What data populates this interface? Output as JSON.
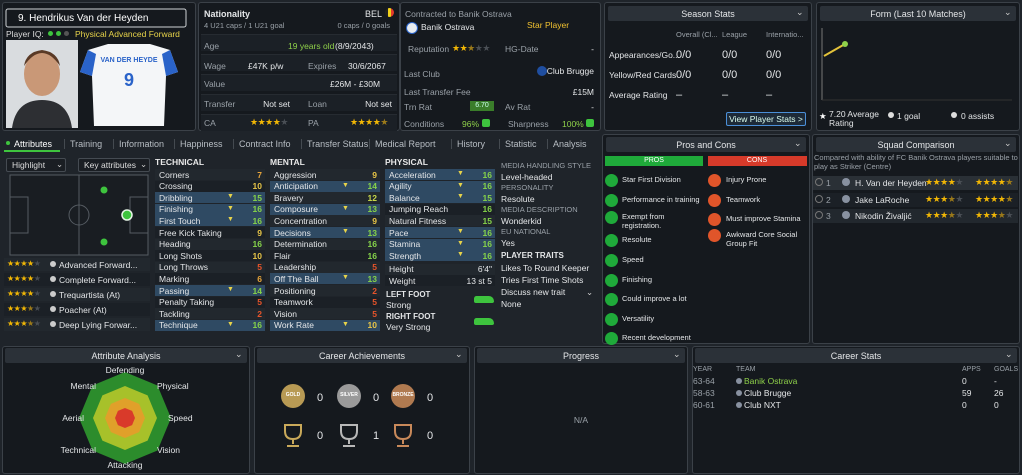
{
  "profile": {
    "name": "9. Hendrikus Van der Heyden",
    "iq_label": "Player IQ:",
    "role": "Physical Advanced Forward",
    "shirt_name": "VAN DER HEYDE",
    "shirt_number": "9"
  },
  "details": {
    "nationality": {
      "label": "Nationality",
      "value": "BEL",
      "u21": "4 U21 caps / 1 U21 goal",
      "senior": "0 caps / 0 goals"
    },
    "age": {
      "label": "Age",
      "value": "19 years old",
      "dob": "(8/9/2043)"
    },
    "wage": {
      "label": "Wage",
      "value": "£47K p/w"
    },
    "expires": {
      "label": "Expires",
      "value": "30/6/2067"
    },
    "value": {
      "label": "Value",
      "value": "£26M - £30M"
    },
    "transfer": {
      "label": "Transfer",
      "value": "Not set"
    },
    "loan": {
      "label": "Loan",
      "value": "Not set"
    },
    "ca": {
      "label": "CA",
      "stars": 4
    },
    "pa": {
      "label": "PA",
      "stars": 4.5
    }
  },
  "contract": {
    "heading": "Contracted to Banik Ostrava",
    "status": "Star Player",
    "club": "Banik Ostrava",
    "reputation": {
      "label": "Reputation",
      "stars": 2.5
    },
    "hg": {
      "label": "HG-Date",
      "value": "-"
    },
    "last_club": {
      "label": "Last Club",
      "value": "Club Brugge"
    },
    "fee": {
      "label": "Last Transfer Fee",
      "value": "£15M"
    },
    "trn": {
      "label": "Trn Rat",
      "value": "6.70"
    },
    "av": {
      "label": "Av Rat",
      "value": "-"
    },
    "conditions": {
      "label": "Conditions",
      "value": "96%"
    },
    "sharpness": {
      "label": "Sharpness",
      "value": "100%"
    }
  },
  "season_stats": {
    "title": "Season Stats",
    "columns": [
      "Overall (Cl...",
      "League",
      "Internatio..."
    ],
    "rows": [
      {
        "label": "Appearances/Go...",
        "values": [
          "0/0",
          "0/0",
          "0/0"
        ]
      },
      {
        "label": "Yellow/Red Cards",
        "values": [
          "0/0",
          "0/0",
          "0/0"
        ]
      },
      {
        "label": "Average Rating",
        "values": [
          "–",
          "–",
          "–"
        ]
      }
    ],
    "button": "View Player Stats >"
  },
  "form": {
    "title": "Form (Last 10 Matches)",
    "average": "7.20 Average Rating",
    "goals": "1 goal",
    "assists": "0 assists"
  },
  "tabs": [
    "Attributes",
    "Training",
    "Information",
    "Happiness",
    "Contract Info",
    "Transfer Status",
    "Medical Report",
    "History",
    "Statistic",
    "Analysis"
  ],
  "pitch": {
    "highlight": "Highlight",
    "key": "Key attributes",
    "roles": [
      {
        "name": "Advanced Forward...",
        "stars": 4
      },
      {
        "name": "Complete Forward...",
        "stars": 4
      },
      {
        "name": "Trequartista (At)",
        "stars": 4
      },
      {
        "name": "Poacher (At)",
        "stars": 3.5
      },
      {
        "name": "Deep Lying Forwar...",
        "stars": 3.5
      }
    ]
  },
  "attributes": {
    "technical": {
      "title": "TECHNICAL",
      "items": [
        {
          "name": "Corners",
          "value": 7
        },
        {
          "name": "Crossing",
          "value": 10
        },
        {
          "name": "Dribbling",
          "value": 15,
          "key": true
        },
        {
          "name": "Finishing",
          "value": 16,
          "key": true
        },
        {
          "name": "First Touch",
          "value": 16,
          "key": true
        },
        {
          "name": "Free Kick Taking",
          "value": 9
        },
        {
          "name": "Heading",
          "value": 16
        },
        {
          "name": "Long Shots",
          "value": 10
        },
        {
          "name": "Long Throws",
          "value": 5
        },
        {
          "name": "Marking",
          "value": 6
        },
        {
          "name": "Passing",
          "value": 14,
          "key": true
        },
        {
          "name": "Penalty Taking",
          "value": 5
        },
        {
          "name": "Tackling",
          "value": 2
        },
        {
          "name": "Technique",
          "value": 16,
          "key": true
        }
      ]
    },
    "mental": {
      "title": "MENTAL",
      "items": [
        {
          "name": "Aggression",
          "value": 9
        },
        {
          "name": "Anticipation",
          "value": 14,
          "key": true
        },
        {
          "name": "Bravery",
          "value": 12
        },
        {
          "name": "Composure",
          "value": 13,
          "key": true
        },
        {
          "name": "Concentration",
          "value": 9
        },
        {
          "name": "Decisions",
          "value": 13,
          "key": true
        },
        {
          "name": "Determination",
          "value": 16
        },
        {
          "name": "Flair",
          "value": 16
        },
        {
          "name": "Leadership",
          "value": 5
        },
        {
          "name": "Off The Ball",
          "value": 13,
          "key": true
        },
        {
          "name": "Positioning",
          "value": 2
        },
        {
          "name": "Teamwork",
          "value": 5
        },
        {
          "name": "Vision",
          "value": 5
        },
        {
          "name": "Work Rate",
          "value": 10,
          "key": true
        }
      ]
    },
    "physical": {
      "title": "PHYSICAL",
      "items": [
        {
          "name": "Acceleration",
          "value": 16,
          "key": true
        },
        {
          "name": "Agility",
          "value": 16,
          "key": true
        },
        {
          "name": "Balance",
          "value": 15,
          "key": true
        },
        {
          "name": "Jumping Reach",
          "value": 16
        },
        {
          "name": "Natural Fitness",
          "value": 15
        },
        {
          "name": "Pace",
          "value": 16,
          "key": true
        },
        {
          "name": "Stamina",
          "value": 16,
          "key": true
        },
        {
          "name": "Strength",
          "value": 16,
          "key": true
        }
      ],
      "body": [
        {
          "name": "Height",
          "value": "6'4\""
        },
        {
          "name": "Weight",
          "value": "13 st 5"
        }
      ]
    },
    "feet": {
      "left_label": "LEFT FOOT",
      "left": "Strong",
      "right_label": "RIGHT FOOT",
      "right": "Very Strong"
    }
  },
  "media": {
    "items": [
      {
        "label": "MEDIA HANDLING STYLE",
        "value": "Level-headed"
      },
      {
        "label": "PERSONALITY",
        "value": "Resolute"
      },
      {
        "label": "MEDIA DESCRIPTION",
        "value": "Wonderkid"
      },
      {
        "label": "EU NATIONAL",
        "value": "Yes"
      }
    ],
    "traits": {
      "label": "PLAYER TRAITS",
      "items": [
        "Likes To Round Keeper",
        "Tries First Time Shots"
      ],
      "discuss": "Discuss new trait",
      "none": "None"
    }
  },
  "pros_cons": {
    "title": "Pros and Cons",
    "pros_label": "PROS",
    "pros": [
      "Star First Division",
      "Performance in training",
      "Exempt from registration.",
      "Resolute",
      "Speed",
      "Finishing",
      "Could improve a lot",
      "Versatility",
      "Recent development"
    ],
    "cons_label": "CONS",
    "cons": [
      "Injury Prone",
      "Teamwork",
      "Must improve Stamina",
      "Awkward Core Social Group Fit"
    ]
  },
  "squad": {
    "title": "Squad Comparison",
    "note": "Compared with ability of FC Banik Ostrava players suitable to play as Striker (Centre)",
    "rows": [
      {
        "rank": 1,
        "name": "H. Van der Heyden",
        "current": 4,
        "potential": 4.5
      },
      {
        "rank": 2,
        "name": "Jake LaRoche",
        "current": 3.5,
        "potential": 4.5
      },
      {
        "rank": 3,
        "name": "Nikodin Živaljić",
        "current": 3.5,
        "potential": 3.5
      }
    ]
  },
  "analysis": {
    "title": "Attribute Analysis",
    "axes": [
      "Defending",
      "Physical",
      "Speed",
      "Vision",
      "Attacking",
      "Technical",
      "Aerial",
      "Mental"
    ]
  },
  "achievements": {
    "title": "Career Achievements",
    "medals": [
      {
        "label": "GOLD",
        "count": 0
      },
      {
        "label": "SILVER",
        "count": 0
      },
      {
        "label": "BRONZE",
        "count": 0
      }
    ],
    "trophies": [
      0,
      1,
      0
    ]
  },
  "progress": {
    "title": "Progress",
    "value": "N/A"
  },
  "career": {
    "title": "Career Stats",
    "columns": [
      "YEAR",
      "TEAM",
      "APPS",
      "GOALS"
    ],
    "rows": [
      [
        "63-64",
        "Banik Ostrava",
        "0",
        "-"
      ],
      [
        "58-63",
        "Club Brugge",
        "59",
        "26"
      ],
      [
        "60-61",
        "Club NXT",
        "0",
        "0"
      ]
    ]
  }
}
